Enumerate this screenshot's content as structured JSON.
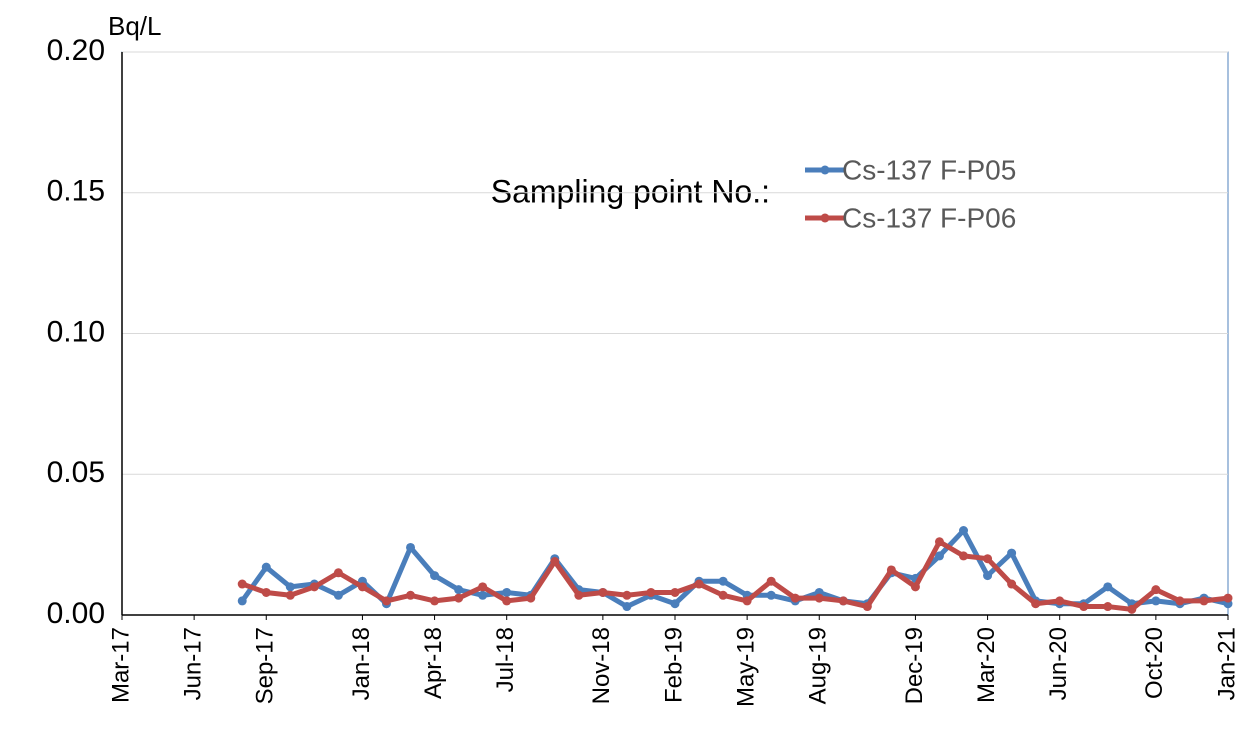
{
  "chart_data": {
    "type": "line",
    "y_label": "Bq/L",
    "legend_title": "Sampling point No.:",
    "x": [
      "2017-08",
      "2017-09",
      "2017-10",
      "2017-11",
      "2017-12",
      "2018-01",
      "2018-02",
      "2018-03",
      "2018-04",
      "2018-05",
      "2018-06",
      "2018-07",
      "2018-08",
      "2018-09",
      "2018-10",
      "2018-11",
      "2018-12",
      "2019-01",
      "2019-02",
      "2019-03",
      "2019-04",
      "2019-05",
      "2019-06",
      "2019-07",
      "2019-08",
      "2019-09",
      "2019-10",
      "2019-11",
      "2019-12",
      "2020-01",
      "2020-02",
      "2020-03",
      "2020-04",
      "2020-05",
      "2020-06",
      "2020-07",
      "2020-08",
      "2020-09",
      "2020-10",
      "2020-11",
      "2020-12",
      "2021-01"
    ],
    "series": [
      {
        "name": "Cs-137 F-P05",
        "color": "#4a7ebb",
        "values": [
          0.005,
          0.017,
          0.01,
          0.011,
          0.007,
          0.012,
          0.004,
          0.024,
          0.014,
          0.009,
          0.007,
          0.008,
          0.007,
          0.02,
          0.009,
          0.008,
          0.003,
          0.007,
          0.004,
          0.012,
          0.012,
          0.007,
          0.007,
          0.005,
          0.008,
          0.005,
          0.004,
          0.015,
          0.013,
          0.021,
          0.03,
          0.014,
          0.022,
          0.005,
          0.004,
          0.004,
          0.01,
          0.004,
          0.005,
          0.004,
          0.006,
          0.004
        ]
      },
      {
        "name": "Cs-137 F-P06",
        "color": "#be4b48",
        "values": [
          0.011,
          0.008,
          0.007,
          0.01,
          0.015,
          0.01,
          0.005,
          0.007,
          0.005,
          0.006,
          0.01,
          0.005,
          0.006,
          0.019,
          0.007,
          0.008,
          0.007,
          0.008,
          0.008,
          0.011,
          0.007,
          0.005,
          0.012,
          0.006,
          0.006,
          0.005,
          0.003,
          0.016,
          0.01,
          0.026,
          0.021,
          0.02,
          0.011,
          0.004,
          0.005,
          0.003,
          0.003,
          0.002,
          0.009,
          0.005,
          0.005,
          0.006
        ]
      }
    ],
    "xlim": [
      "2017-03",
      "2021-01"
    ],
    "xticks": [
      {
        "value": "2017-03",
        "label": "Mar-17"
      },
      {
        "value": "2017-06",
        "label": "Jun-17"
      },
      {
        "value": "2017-09",
        "label": "Sep-17"
      },
      {
        "value": "2018-01",
        "label": "Jan-18"
      },
      {
        "value": "2018-04",
        "label": "Apr-18"
      },
      {
        "value": "2018-07",
        "label": "Jul-18"
      },
      {
        "value": "2018-11",
        "label": "Nov-18"
      },
      {
        "value": "2019-02",
        "label": "Feb-19"
      },
      {
        "value": "2019-05",
        "label": "May-19"
      },
      {
        "value": "2019-08",
        "label": "Aug-19"
      },
      {
        "value": "2019-12",
        "label": "Dec-19"
      },
      {
        "value": "2020-03",
        "label": "Mar-20"
      },
      {
        "value": "2020-06",
        "label": "Jun-20"
      },
      {
        "value": "2020-10",
        "label": "Oct-20"
      },
      {
        "value": "2021-01",
        "label": "Jan-21"
      }
    ],
    "ylim": [
      0,
      0.2
    ],
    "yticks": [
      {
        "value": 0,
        "label": "0.00"
      },
      {
        "value": 0.05,
        "label": "0.05"
      },
      {
        "value": 0.1,
        "label": "0.10"
      },
      {
        "value": 0.15,
        "label": "0.15"
      },
      {
        "value": 0.2,
        "label": "0.20"
      }
    ],
    "grid": true
  }
}
